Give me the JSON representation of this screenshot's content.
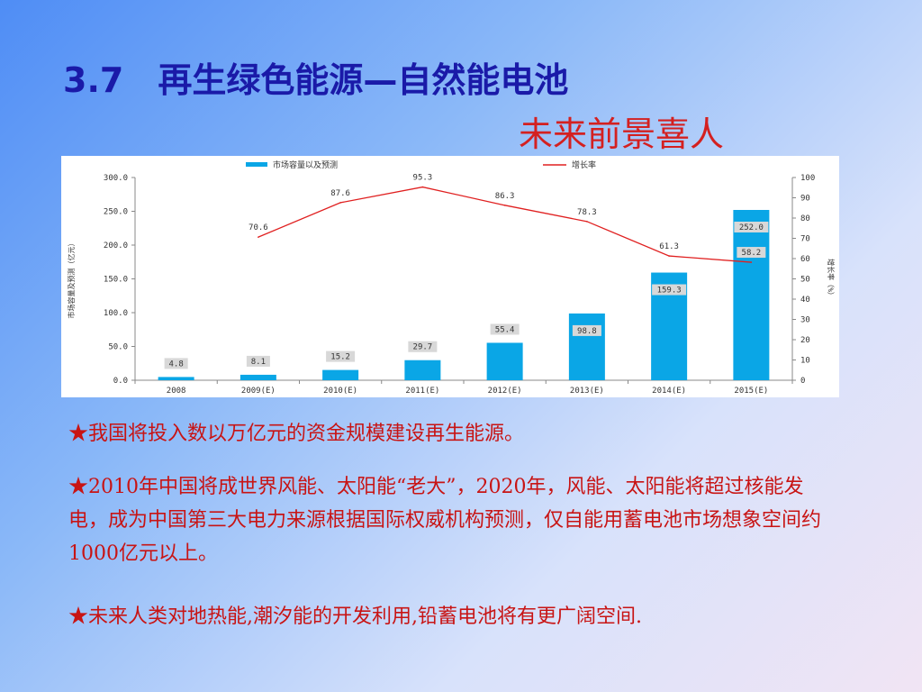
{
  "slide": {
    "section_number": "3.7",
    "title": "再生绿色能源—自然能电池",
    "subtitle": "未来前景喜人",
    "bullets": [
      "★我国将投入数以万亿元的资金规模建设再生能源。",
      "★2010年中国将成世界风能、太阳能“老大”，2020年，风能、太阳能将超过核能发电，成为中国第三大电力来源根据国际权威机构预测，仅自能用蓄电池市场想象空间约1000亿元以上。",
      "★未来人类对地热能,潮汐能的开发利用,铅蓄电池将有更广阔空间."
    ]
  },
  "chart_data": {
    "type": "bar",
    "categories": [
      "2008",
      "2009(E)",
      "2010(E)",
      "2011(E)",
      "2012(E)",
      "2013(E)",
      "2014(E)",
      "2015(E)"
    ],
    "series": [
      {
        "name": "市场容量以及预测",
        "type": "bar",
        "axis": "left",
        "values": [
          4.8,
          8.1,
          15.2,
          29.7,
          55.4,
          98.8,
          159.3,
          252.0
        ],
        "labels": [
          "4.8",
          "8.1",
          "15.2",
          "29.7",
          "55.4",
          "98.8",
          "159.3",
          "252.0"
        ]
      },
      {
        "name": "增长率",
        "type": "line",
        "axis": "right",
        "values": [
          null,
          70.6,
          87.6,
          95.3,
          86.3,
          78.3,
          61.3,
          58.2
        ],
        "labels": [
          "",
          "70.6",
          "87.6",
          "95.3",
          "86.3",
          "78.3",
          "61.3",
          "58.2"
        ]
      }
    ],
    "ylabel": "市场容量及预测（亿元）",
    "y2label": "增长率（%）",
    "ylim": [
      0,
      300
    ],
    "y2lim": [
      0,
      100
    ],
    "yticks": [
      "0.0",
      "50.0",
      "100.0",
      "150.0",
      "200.0",
      "250.0",
      "300.0"
    ],
    "y2ticks": [
      "0",
      "10",
      "20",
      "30",
      "40",
      "50",
      "60",
      "70",
      "80",
      "90",
      "100"
    ],
    "legend_position": "top",
    "grid": false,
    "colors": {
      "bar": "#0aa6e6",
      "line": "#e02020",
      "label_box": "#d8d8d8"
    }
  }
}
